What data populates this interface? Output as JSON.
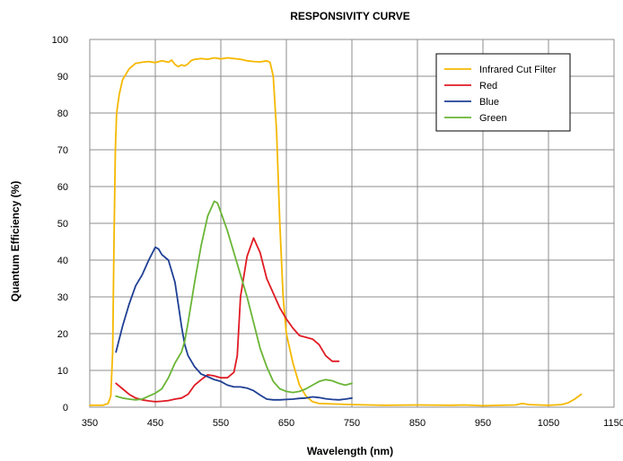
{
  "chart_data": {
    "type": "line",
    "title": "RESPONSIVITY CURVE",
    "xlabel": "Wavelength (nm)",
    "ylabel": "Quantum Efficiency (%)",
    "xlim": [
      350,
      1150
    ],
    "ylim": [
      0,
      100
    ],
    "x_ticks": [
      "350",
      "450",
      "550",
      "650",
      "750",
      "850",
      "950",
      "1050",
      "1150"
    ],
    "y_ticks": [
      "0",
      "10",
      "20",
      "30",
      "40",
      "50",
      "60",
      "70",
      "80",
      "90",
      "100"
    ],
    "grid": true,
    "legend_position": "top-right",
    "series": [
      {
        "name": "Infrared Cut Filter",
        "color": "#f5b800",
        "points": [
          [
            350,
            0.5
          ],
          [
            370,
            0.5
          ],
          [
            378,
            1
          ],
          [
            382,
            3
          ],
          [
            385,
            15
          ],
          [
            387,
            45
          ],
          [
            389,
            70
          ],
          [
            391,
            80
          ],
          [
            395,
            85
          ],
          [
            400,
            89
          ],
          [
            410,
            92
          ],
          [
            420,
            93.5
          ],
          [
            430,
            93.8
          ],
          [
            440,
            94
          ],
          [
            450,
            93.7
          ],
          [
            460,
            94.2
          ],
          [
            470,
            93.8
          ],
          [
            475,
            94.4
          ],
          [
            480,
            93.2
          ],
          [
            485,
            92.6
          ],
          [
            490,
            93.1
          ],
          [
            495,
            92.8
          ],
          [
            500,
            93.4
          ],
          [
            505,
            94.3
          ],
          [
            510,
            94.6
          ],
          [
            520,
            94.8
          ],
          [
            530,
            94.6
          ],
          [
            540,
            95
          ],
          [
            550,
            94.7
          ],
          [
            560,
            95
          ],
          [
            570,
            94.8
          ],
          [
            580,
            94.6
          ],
          [
            590,
            94.2
          ],
          [
            600,
            94
          ],
          [
            610,
            93.9
          ],
          [
            620,
            94.2
          ],
          [
            625,
            93.8
          ],
          [
            630,
            90
          ],
          [
            635,
            75
          ],
          [
            640,
            50
          ],
          [
            645,
            30
          ],
          [
            650,
            20
          ],
          [
            660,
            12
          ],
          [
            670,
            6
          ],
          [
            680,
            3
          ],
          [
            690,
            1.5
          ],
          [
            700,
            1
          ],
          [
            750,
            0.7
          ],
          [
            800,
            0.5
          ],
          [
            850,
            0.6
          ],
          [
            900,
            0.5
          ],
          [
            920,
            0.6
          ],
          [
            950,
            0.4
          ],
          [
            1000,
            0.6
          ],
          [
            1010,
            1
          ],
          [
            1020,
            0.7
          ],
          [
            1050,
            0.5
          ],
          [
            1070,
            0.7
          ],
          [
            1080,
            1.2
          ],
          [
            1090,
            2.2
          ],
          [
            1100,
            3.5
          ]
        ]
      },
      {
        "name": "Red",
        "color": "#e01b24",
        "points": [
          [
            390,
            6.5
          ],
          [
            400,
            5
          ],
          [
            410,
            3.5
          ],
          [
            420,
            2.5
          ],
          [
            430,
            2
          ],
          [
            440,
            1.7
          ],
          [
            450,
            1.5
          ],
          [
            460,
            1.6
          ],
          [
            470,
            1.8
          ],
          [
            480,
            2.2
          ],
          [
            490,
            2.5
          ],
          [
            500,
            3.5
          ],
          [
            510,
            6
          ],
          [
            520,
            7.5
          ],
          [
            530,
            8.8
          ],
          [
            540,
            8.5
          ],
          [
            550,
            8
          ],
          [
            560,
            8
          ],
          [
            570,
            9.5
          ],
          [
            575,
            14
          ],
          [
            580,
            30
          ],
          [
            590,
            41
          ],
          [
            600,
            46
          ],
          [
            610,
            42
          ],
          [
            620,
            35
          ],
          [
            630,
            31
          ],
          [
            640,
            27
          ],
          [
            650,
            24
          ],
          [
            660,
            21.5
          ],
          [
            670,
            19.5
          ],
          [
            680,
            19
          ],
          [
            690,
            18.5
          ],
          [
            700,
            17
          ],
          [
            710,
            14
          ],
          [
            720,
            12.5
          ],
          [
            730,
            12.5
          ]
        ]
      },
      {
        "name": "Blue",
        "color": "#1f3f94",
        "points": [
          [
            390,
            15
          ],
          [
            400,
            22
          ],
          [
            410,
            28
          ],
          [
            420,
            33
          ],
          [
            430,
            36
          ],
          [
            440,
            40
          ],
          [
            450,
            43.5
          ],
          [
            455,
            43
          ],
          [
            460,
            41.5
          ],
          [
            470,
            40
          ],
          [
            480,
            34
          ],
          [
            485,
            28
          ],
          [
            490,
            22
          ],
          [
            495,
            17
          ],
          [
            500,
            14
          ],
          [
            510,
            11
          ],
          [
            520,
            9
          ],
          [
            530,
            8.3
          ],
          [
            540,
            7.5
          ],
          [
            550,
            7
          ],
          [
            560,
            6
          ],
          [
            570,
            5.5
          ],
          [
            580,
            5.5
          ],
          [
            590,
            5.2
          ],
          [
            600,
            4.5
          ],
          [
            610,
            3.3
          ],
          [
            620,
            2.2
          ],
          [
            630,
            2
          ],
          [
            640,
            2
          ],
          [
            650,
            2.1
          ],
          [
            660,
            2.2
          ],
          [
            670,
            2.4
          ],
          [
            680,
            2.5
          ],
          [
            690,
            2.8
          ],
          [
            700,
            2.6
          ],
          [
            710,
            2.3
          ],
          [
            720,
            2.1
          ],
          [
            730,
            2
          ],
          [
            740,
            2.2
          ],
          [
            750,
            2.5
          ]
        ]
      },
      {
        "name": "Green",
        "color": "#6ab536",
        "points": [
          [
            390,
            3
          ],
          [
            400,
            2.5
          ],
          [
            410,
            2.2
          ],
          [
            420,
            2
          ],
          [
            430,
            2.2
          ],
          [
            440,
            3
          ],
          [
            450,
            3.8
          ],
          [
            460,
            5
          ],
          [
            470,
            8
          ],
          [
            480,
            12
          ],
          [
            490,
            15
          ],
          [
            495,
            18
          ],
          [
            500,
            23
          ],
          [
            510,
            34
          ],
          [
            520,
            44
          ],
          [
            530,
            52
          ],
          [
            540,
            56
          ],
          [
            545,
            55.5
          ],
          [
            550,
            53
          ],
          [
            560,
            48
          ],
          [
            570,
            42
          ],
          [
            580,
            36
          ],
          [
            590,
            30
          ],
          [
            600,
            23
          ],
          [
            610,
            16
          ],
          [
            620,
            11
          ],
          [
            630,
            7
          ],
          [
            640,
            5
          ],
          [
            650,
            4.3
          ],
          [
            660,
            4
          ],
          [
            670,
            4.3
          ],
          [
            680,
            5
          ],
          [
            690,
            6
          ],
          [
            700,
            7
          ],
          [
            710,
            7.5
          ],
          [
            720,
            7.2
          ],
          [
            730,
            6.5
          ],
          [
            740,
            6
          ],
          [
            750,
            6.5
          ]
        ]
      }
    ]
  }
}
